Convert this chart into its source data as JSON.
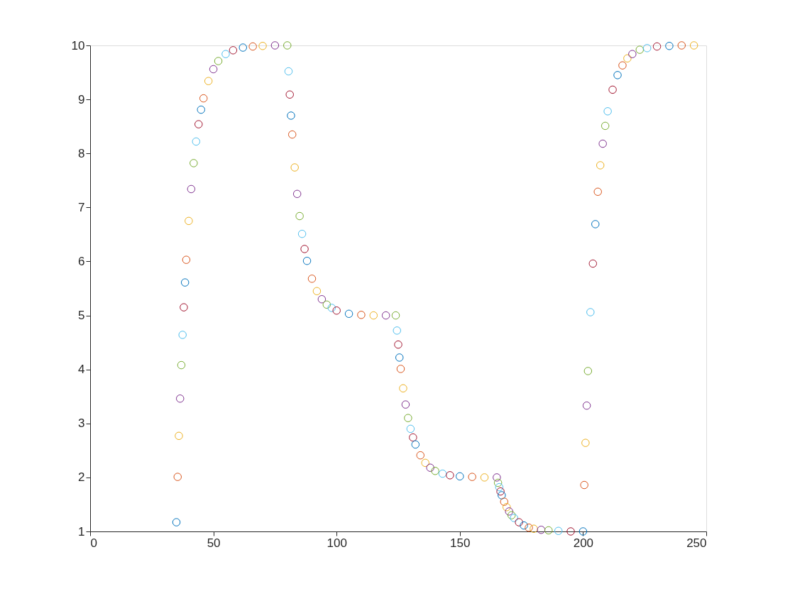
{
  "chart_data": {
    "type": "scatter",
    "marker": "circle",
    "grid": false,
    "xlim": [
      0,
      250
    ],
    "xticks": [
      0,
      50,
      100,
      150,
      200,
      250
    ],
    "ylim": [
      1,
      10
    ],
    "yticks": [
      1,
      2,
      3,
      4,
      5,
      6,
      7,
      8,
      9,
      10
    ],
    "x": [
      35,
      35.5,
      36,
      36.5,
      37,
      37.5,
      38,
      38.5,
      39,
      40,
      41,
      42,
      43,
      44,
      45,
      46,
      48,
      50,
      52,
      55,
      58,
      62,
      66,
      70,
      75,
      80,
      80.5,
      81,
      81.5,
      82,
      83,
      84,
      85,
      86,
      87,
      88,
      90,
      92,
      94,
      96,
      98,
      100,
      105,
      110,
      115,
      120,
      124,
      124.5,
      125,
      125.5,
      126,
      127,
      128,
      129,
      130,
      131,
      132,
      134,
      136,
      138,
      140,
      143,
      146,
      150,
      155,
      160,
      165,
      165.5,
      166,
      166.5,
      167,
      168,
      169,
      170,
      171,
      172,
      174,
      176,
      178,
      180,
      183,
      186,
      190,
      195,
      200,
      200.5,
      201,
      201.5,
      202,
      203,
      204,
      205,
      206,
      207,
      208,
      209,
      210,
      212,
      214,
      216,
      218,
      220,
      223,
      226,
      230,
      235,
      240,
      245
    ],
    "values": [
      1.17,
      2.01,
      2.77,
      3.46,
      4.08,
      4.64,
      5.15,
      5.61,
      6.03,
      6.75,
      7.34,
      7.82,
      8.22,
      8.54,
      8.81,
      9.02,
      9.34,
      9.56,
      9.71,
      9.84,
      9.91,
      9.96,
      9.98,
      9.99,
      10,
      10,
      9.52,
      9.09,
      8.7,
      8.35,
      7.74,
      7.25,
      6.84,
      6.51,
      6.23,
      6.01,
      5.68,
      5.45,
      5.3,
      5.2,
      5.14,
      5.09,
      5.03,
      5.01,
      5,
      5,
      5,
      4.72,
      4.46,
      4.22,
      4.01,
      3.65,
      3.35,
      3.1,
      2.9,
      2.74,
      2.61,
      2.41,
      2.27,
      2.18,
      2.12,
      2.07,
      2.04,
      2.02,
      2.01,
      2,
      2,
      1.9,
      1.82,
      1.74,
      1.67,
      1.55,
      1.45,
      1.37,
      1.3,
      1.25,
      1.17,
      1.11,
      1.07,
      1.05,
      1.03,
      1.02,
      1.01,
      1,
      1,
      1.86,
      2.64,
      3.33,
      3.97,
      5.06,
      5.96,
      6.69,
      7.29,
      7.78,
      8.18,
      8.51,
      8.78,
      9.18,
      9.45,
      9.63,
      9.76,
      9.84,
      9.92,
      9.95,
      9.98,
      9.99,
      10,
      10
    ],
    "colors": [
      "#0072bd",
      "#d95319",
      "#edb120",
      "#7e2f8e",
      "#77ac30",
      "#4dbeee",
      "#a2142f",
      "#0072bd",
      "#d95319",
      "#edb120",
      "#7e2f8e",
      "#77ac30",
      "#4dbeee",
      "#a2142f",
      "#0072bd",
      "#d95319",
      "#edb120",
      "#7e2f8e",
      "#77ac30",
      "#4dbeee",
      "#a2142f",
      "#0072bd",
      "#d95319",
      "#edb120",
      "#7e2f8e",
      "#77ac30",
      "#4dbeee",
      "#a2142f",
      "#0072bd",
      "#d95319",
      "#edb120",
      "#7e2f8e",
      "#77ac30",
      "#4dbeee",
      "#a2142f",
      "#0072bd",
      "#d95319",
      "#edb120",
      "#7e2f8e",
      "#77ac30",
      "#4dbeee",
      "#a2142f",
      "#0072bd",
      "#d95319",
      "#edb120",
      "#7e2f8e",
      "#77ac30",
      "#4dbeee",
      "#a2142f",
      "#0072bd",
      "#d95319",
      "#edb120",
      "#7e2f8e",
      "#77ac30",
      "#4dbeee",
      "#a2142f",
      "#0072bd",
      "#d95319",
      "#edb120",
      "#7e2f8e",
      "#77ac30",
      "#4dbeee",
      "#a2142f",
      "#0072bd",
      "#d95319",
      "#edb120",
      "#7e2f8e",
      "#77ac30",
      "#4dbeee",
      "#a2142f",
      "#0072bd",
      "#d95319",
      "#edb120",
      "#7e2f8e",
      "#77ac30",
      "#4dbeee",
      "#a2142f",
      "#0072bd",
      "#d95319",
      "#edb120",
      "#7e2f8e",
      "#77ac30",
      "#4dbeee",
      "#a2142f",
      "#0072bd",
      "#d95319",
      "#edb120",
      "#7e2f8e",
      "#77ac30",
      "#4dbeee",
      "#a2142f",
      "#0072bd",
      "#d95319",
      "#edb120",
      "#7e2f8e",
      "#77ac30",
      "#4dbeee",
      "#a2142f",
      "#0072bd",
      "#d95319",
      "#edb120",
      "#7e2f8e",
      "#77ac30",
      "#4dbeee",
      "#a2142f",
      "#0072bd",
      "#d95319",
      "#edb120"
    ]
  }
}
